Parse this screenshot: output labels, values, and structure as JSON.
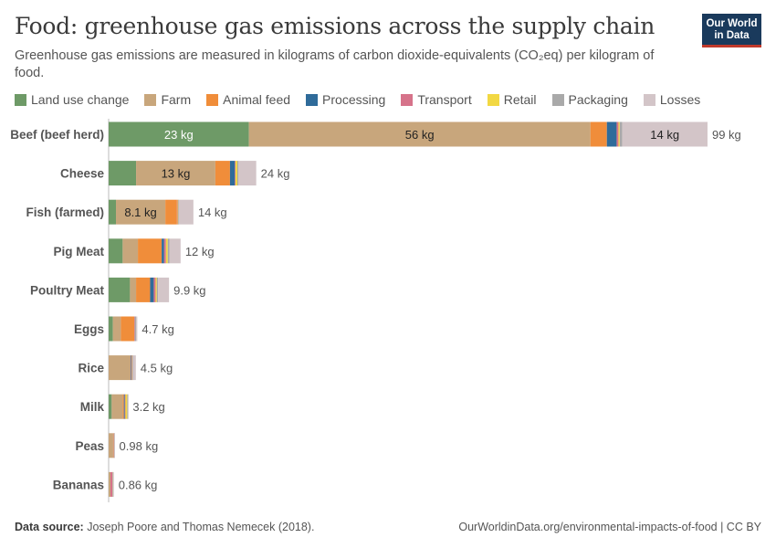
{
  "header": {
    "title": "Food: greenhouse gas emissions across the supply chain",
    "subtitle": "Greenhouse gas emissions are measured in kilograms of carbon dioxide-equivalents (CO₂eq) per kilogram of food.",
    "logo_line1": "Our World",
    "logo_line2": "in Data"
  },
  "legend": [
    {
      "label": "Land use change",
      "color": "#6e9a67"
    },
    {
      "label": "Farm",
      "color": "#c8a67c"
    },
    {
      "label": "Animal feed",
      "color": "#f08d3a"
    },
    {
      "label": "Processing",
      "color": "#2f6b9a"
    },
    {
      "label": "Transport",
      "color": "#d6738a"
    },
    {
      "label": "Retail",
      "color": "#f2d843"
    },
    {
      "label": "Packaging",
      "color": "#a9a9a9"
    },
    {
      "label": "Losses",
      "color": "#d3c5c8"
    }
  ],
  "chart_data": {
    "type": "bar",
    "orientation": "horizontal",
    "stacked": true,
    "title": "Food: greenhouse gas emissions across the supply chain",
    "xlabel": "",
    "ylabel": "",
    "unit": "kg",
    "xlim": [
      0,
      100
    ],
    "grid": false,
    "categories": [
      "Beef (beef herd)",
      "Cheese",
      "Fish (farmed)",
      "Pig Meat",
      "Poultry Meat",
      "Eggs",
      "Rice",
      "Milk",
      "Peas",
      "Bananas"
    ],
    "totals": [
      99,
      24,
      14,
      12,
      9.9,
      4.7,
      4.5,
      3.2,
      0.98,
      0.86
    ],
    "total_labels": [
      "99 kg",
      "24 kg",
      "14 kg",
      "12 kg",
      "9.9 kg",
      "4.7 kg",
      "4.5 kg",
      "3.2 kg",
      "0.98 kg",
      "0.86 kg"
    ],
    "series": [
      {
        "name": "Land use change",
        "values": [
          23,
          4.5,
          1.2,
          2.3,
          3.5,
          0.7,
          0,
          0.5,
          0,
          0
        ],
        "labels": [
          "23 kg",
          "",
          "",
          "",
          "",
          "",
          "",
          "",
          "",
          ""
        ]
      },
      {
        "name": "Farm",
        "values": [
          56,
          13,
          8.1,
          2.5,
          1.0,
          1.3,
          3.6,
          1.8,
          0.74,
          0.3
        ],
        "labels": [
          "56 kg",
          "13 kg",
          "8.1 kg",
          "",
          "",
          "",
          "",
          "",
          "",
          ""
        ]
      },
      {
        "name": "Animal feed",
        "values": [
          2.7,
          2.4,
          1.9,
          3.9,
          2.3,
          2.2,
          0,
          0.2,
          0,
          0
        ],
        "labels": [
          "",
          "",
          "",
          "",
          "",
          "",
          "",
          "",
          "",
          ""
        ]
      },
      {
        "name": "Processing",
        "values": [
          1.6,
          0.8,
          0,
          0.4,
          0.6,
          0,
          0.1,
          0.15,
          0,
          0
        ],
        "labels": [
          "",
          "",
          "",
          "",
          "",
          "",
          "",
          "",
          "",
          ""
        ]
      },
      {
        "name": "Transport",
        "values": [
          0.3,
          0.1,
          0.1,
          0.3,
          0.3,
          0.1,
          0.1,
          0.1,
          0.1,
          0.3
        ],
        "labels": [
          "",
          "",
          "",
          "",
          "",
          "",
          "",
          "",
          "",
          ""
        ]
      },
      {
        "name": "Retail",
        "values": [
          0.2,
          0.3,
          0.1,
          0.3,
          0.2,
          0,
          0.06,
          0.3,
          0.04,
          0.02
        ],
        "labels": [
          "",
          "",
          "",
          "",
          "",
          "",
          "",
          "",
          "",
          ""
        ]
      },
      {
        "name": "Packaging",
        "values": [
          0.4,
          0.2,
          0.1,
          0.3,
          0.2,
          0.2,
          0.1,
          0.1,
          0.04,
          0.07
        ],
        "labels": [
          "",
          "",
          "",
          "",
          "",
          "",
          "",
          "",
          "",
          ""
        ]
      },
      {
        "name": "Losses",
        "values": [
          14,
          2.9,
          2.4,
          1.8,
          1.8,
          0.2,
          0.5,
          0.05,
          0.06,
          0.17
        ],
        "labels": [
          "14 kg",
          "",
          "",
          "",
          "",
          "",
          "",
          "",
          "",
          ""
        ]
      }
    ]
  },
  "footer": {
    "source_label": "Data source:",
    "source_text": "Joseph Poore and Thomas Nemecek (2018).",
    "url_text": "OurWorldinData.org/environmental-impacts-of-food | CC BY"
  }
}
